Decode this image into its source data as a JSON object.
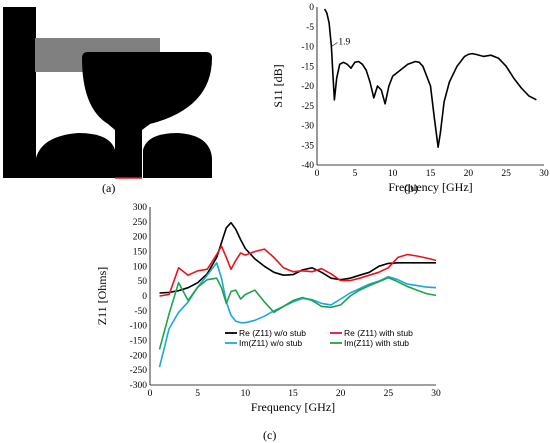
{
  "panels": {
    "a": "(a)",
    "b": "(b)",
    "c": "(c)"
  },
  "colors": {
    "antenna": "#000000",
    "feedline": "#808080",
    "black": "#000000",
    "red": "#e8141c",
    "blue": "#1aa7e0",
    "green": "#1ea34a"
  },
  "chart_data": [
    {
      "type": "line",
      "panel": "(b)",
      "xlabel": "Frequency [GHz]",
      "ylabel": "S11 [dB]",
      "xlim": [
        0,
        30
      ],
      "ylim": [
        -40,
        0
      ],
      "xticks": [
        "0",
        "5",
        "10",
        "15",
        "20",
        "25",
        "30"
      ],
      "yticks": [
        "0",
        "-5",
        "-10",
        "-15",
        "-20",
        "-25",
        "-30",
        "-35",
        "-40"
      ],
      "grid": false,
      "annotation": {
        "text": "1.9",
        "x": 1.9,
        "y": -10
      },
      "series": [
        {
          "color": "#000000",
          "x": [
            1,
            1.3,
            1.6,
            1.9,
            2.1,
            2.3,
            2.6,
            3,
            3.5,
            4,
            4.5,
            5,
            5.5,
            6,
            6.5,
            7,
            7.5,
            8,
            8.5,
            9,
            9.5,
            10,
            11,
            12,
            13,
            13.5,
            14,
            15,
            15.5,
            16,
            16.3,
            16.8,
            17.5,
            18.5,
            19.5,
            20,
            20.5,
            21,
            22,
            23,
            24,
            25,
            26,
            27,
            28,
            29
          ],
          "y": [
            -0.5,
            -1.5,
            -4,
            -10,
            -17,
            -23.5,
            -18,
            -14.5,
            -14,
            -14.5,
            -15.5,
            -14,
            -13.8,
            -14.5,
            -16,
            -19,
            -23,
            -20,
            -21,
            -24.5,
            -20,
            -17.5,
            -16,
            -14.5,
            -13.8,
            -14,
            -15,
            -20,
            -28,
            -35.5,
            -32,
            -24,
            -19,
            -15,
            -12.5,
            -12,
            -11.8,
            -12,
            -12.5,
            -12.2,
            -13,
            -15,
            -18,
            -20.5,
            -22.5,
            -23.5
          ]
        }
      ]
    },
    {
      "type": "line",
      "panel": "(c)",
      "xlabel": "Frequency [GHz]",
      "ylabel": "Z11 [Ohms]",
      "xlim": [
        0,
        30
      ],
      "ylim": [
        -300,
        300
      ],
      "xticks": [
        "0",
        "5",
        "10",
        "15",
        "20",
        "25",
        "30"
      ],
      "yticks": [
        "300",
        "250",
        "200",
        "150",
        "100",
        "50",
        "0",
        "-50",
        "-100",
        "-150",
        "-200",
        "-250",
        "-300"
      ],
      "grid": false,
      "legend": "bottom",
      "x": [
        1,
        2,
        3,
        4,
        5,
        6,
        7,
        7.5,
        8,
        8.5,
        9,
        9.5,
        10,
        11,
        12,
        13,
        14,
        15,
        16,
        17,
        18,
        19,
        20,
        21,
        22,
        23,
        24,
        25,
        26,
        27,
        28,
        29,
        30
      ],
      "series": [
        {
          "name": "Re (Z11) w/o stub",
          "color": "#000000",
          "values": [
            10,
            12,
            18,
            28,
            45,
            75,
            130,
            180,
            230,
            247,
            225,
            190,
            160,
            125,
            100,
            80,
            70,
            72,
            88,
            95,
            80,
            60,
            55,
            60,
            70,
            80,
            100,
            110,
            112,
            112,
            112,
            112,
            112
          ]
        },
        {
          "name": "Re (Z11) with stub",
          "color": "#e8141c",
          "values": [
            0,
            5,
            95,
            70,
            85,
            90,
            140,
            168,
            130,
            90,
            120,
            145,
            138,
            150,
            158,
            130,
            95,
            82,
            85,
            82,
            92,
            75,
            52,
            52,
            60,
            70,
            80,
            95,
            130,
            140,
            135,
            128,
            120
          ]
        },
        {
          "name": "Im(Z11) w/o stub",
          "color": "#1aa7e0",
          "values": [
            -240,
            -110,
            -55,
            -20,
            30,
            70,
            112,
            60,
            -20,
            -65,
            -85,
            -90,
            -90,
            -82,
            -68,
            -50,
            -35,
            -20,
            -8,
            -12,
            -25,
            -30,
            -10,
            10,
            25,
            40,
            50,
            65,
            55,
            40,
            35,
            30,
            28
          ]
        },
        {
          "name": "Im(Z11) with stub",
          "color": "#1ea34a",
          "values": [
            -180,
            -60,
            45,
            -15,
            30,
            55,
            60,
            28,
            -25,
            15,
            20,
            -10,
            5,
            20,
            -20,
            -55,
            -35,
            -15,
            -5,
            -15,
            -35,
            -38,
            -30,
            0,
            20,
            35,
            48,
            62,
            48,
            32,
            20,
            8,
            2
          ]
        }
      ]
    }
  ]
}
